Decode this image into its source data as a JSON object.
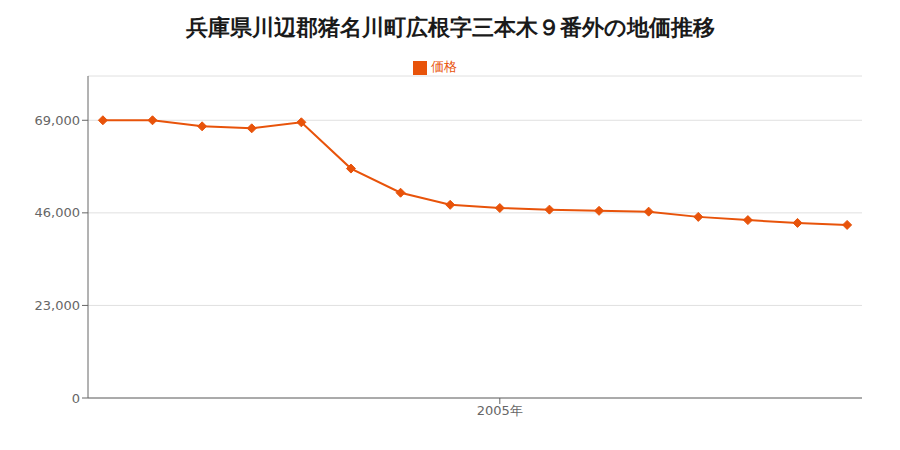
{
  "chart_data": {
    "type": "line",
    "title": "兵庫県川辺郡猪名川町広根字三本木９番外の地価推移",
    "x": [
      1997,
      1998,
      1999,
      2000,
      2001,
      2002,
      2003,
      2004,
      2005,
      2006,
      2007,
      2008,
      2009,
      2010,
      2011,
      2012
    ],
    "series": [
      {
        "name": "価格",
        "color": "#e8530a",
        "marker": "diamond",
        "values": [
          69000,
          69000,
          67500,
          67000,
          68500,
          57000,
          51000,
          48000,
          47200,
          46800,
          46500,
          46300,
          45000,
          44200,
          43500,
          43000
        ]
      }
    ],
    "xlim": [
      1996.7,
      2012.3
    ],
    "xticks": [
      {
        "value": 2005,
        "label": "2005年"
      }
    ],
    "ylim": [
      0,
      80000
    ],
    "yticks": [
      0,
      {
        "value": 23000,
        "label": "23,000"
      },
      {
        "value": 46000,
        "label": "46,000"
      },
      {
        "value": 69000,
        "label": "69,000"
      }
    ],
    "grid": true,
    "legend": "top"
  }
}
